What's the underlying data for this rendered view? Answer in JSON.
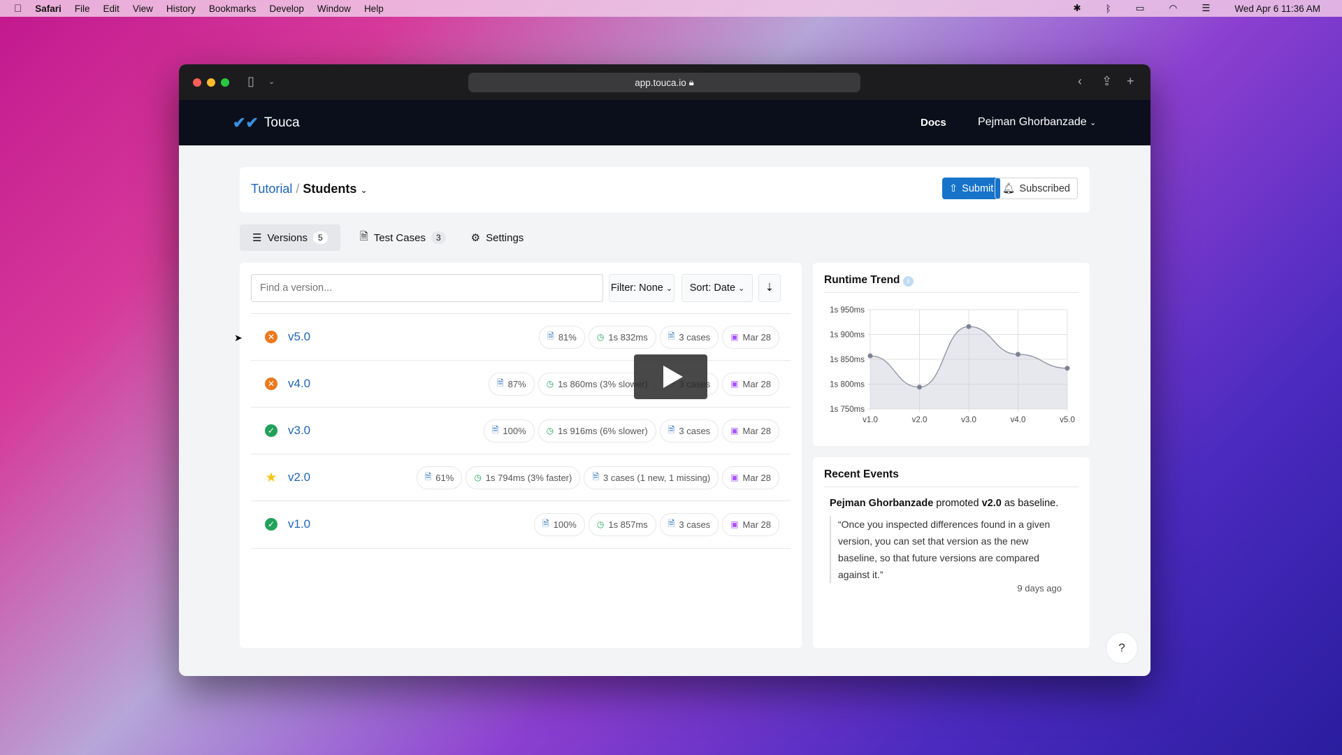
{
  "menubar": {
    "app": "Safari",
    "items": [
      "File",
      "Edit",
      "View",
      "History",
      "Bookmarks",
      "Develop",
      "Window",
      "Help"
    ],
    "clock": "Wed Apr 6  11:36 AM"
  },
  "browser": {
    "url": "app.touca.io"
  },
  "nav": {
    "brand": "Touca",
    "docs": "Docs",
    "user": "Pejman Ghorbanzade"
  },
  "header": {
    "team": "Tutorial",
    "separator": "/",
    "suite": "Students",
    "submit": "Submit",
    "subscribed": "Subscribed"
  },
  "tabs": [
    {
      "label": "Versions",
      "count": "5"
    },
    {
      "label": "Test Cases",
      "count": "3"
    },
    {
      "label": "Settings"
    }
  ],
  "toolbar": {
    "search_placeholder": "Find a version...",
    "filter": "Filter: None",
    "sort": "Sort: Date"
  },
  "versions": [
    {
      "name": "v5.0",
      "status": "failed",
      "match": "81%",
      "runtime": "1s 832ms",
      "cases": "3 cases",
      "date": "Mar 28"
    },
    {
      "name": "v4.0",
      "status": "failed",
      "match": "87%",
      "runtime": "1s 860ms (3% slower)",
      "cases": "3 cases",
      "date": "Mar 28"
    },
    {
      "name": "v3.0",
      "status": "passed",
      "match": "100%",
      "runtime": "1s 916ms (6% slower)",
      "cases": "3 cases",
      "date": "Mar 28"
    },
    {
      "name": "v2.0",
      "status": "baseline",
      "match": "61%",
      "runtime": "1s 794ms (3% faster)",
      "cases": "3 cases (1 new, 1 missing)",
      "date": "Mar 28"
    },
    {
      "name": "v1.0",
      "status": "passed",
      "match": "100%",
      "runtime": "1s 857ms",
      "cases": "3 cases",
      "date": "Mar 28"
    }
  ],
  "colors": {
    "failed": "#ea7a1f",
    "passed": "#22a15a",
    "baseline": "#f5c518",
    "link": "#1e64b7",
    "primary": "#1673c9"
  },
  "chart_data": {
    "type": "area",
    "title": "Runtime Trend",
    "categories": [
      "v1.0",
      "v2.0",
      "v3.0",
      "v4.0",
      "v5.0"
    ],
    "values_ms": [
      1857,
      1794,
      1916,
      1860,
      1832
    ],
    "ylim": [
      1750,
      1950
    ],
    "yticks": [
      "1s 950ms",
      "1s 900ms",
      "1s 850ms",
      "1s 800ms",
      "1s 750ms"
    ],
    "grid": true
  },
  "events": {
    "title": "Recent Events",
    "actor": "Pejman Ghorbanzade",
    "action": "promoted",
    "version": "v2.0",
    "suffix": "as baseline.",
    "quote": "“Once you inspected differences found in a given version, you can set that version as the new baseline, so that future versions are compared against it.”",
    "time": "9 days ago"
  },
  "help": "?"
}
